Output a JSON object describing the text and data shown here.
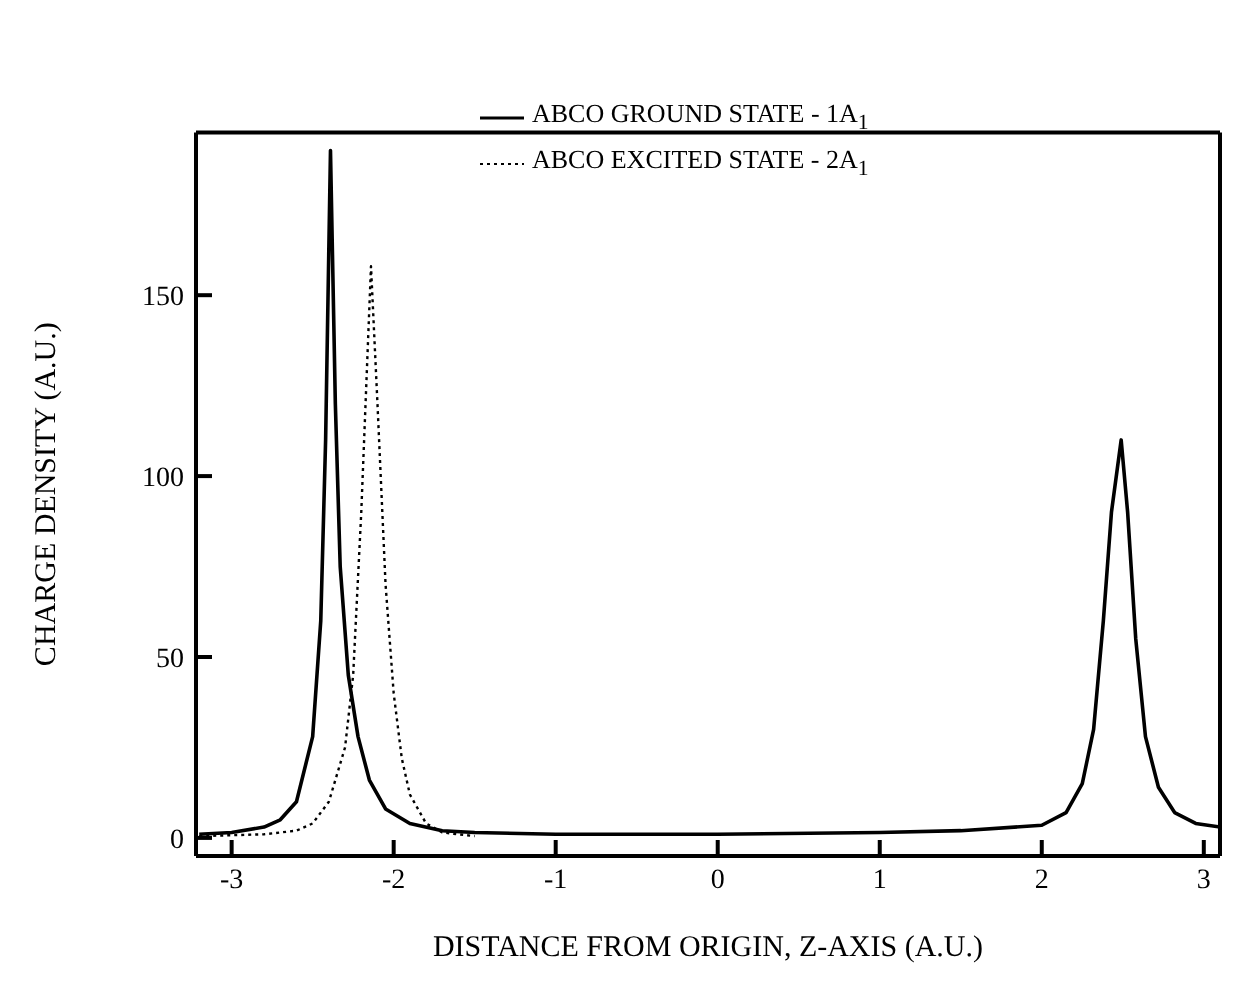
{
  "chart_data": {
    "type": "line",
    "xlabel": "DISTANCE FROM ORIGIN, Z-AXIS (A.U.)",
    "ylabel": "CHARGE DENSITY (A.U.)",
    "xlim": [
      -3.22,
      3.1
    ],
    "xticks": [
      -3,
      -2,
      -1,
      0,
      1,
      2,
      3
    ],
    "ylim": [
      -5,
      195
    ],
    "yticks": [
      0,
      50,
      100,
      150
    ],
    "grid": false,
    "legend": "top",
    "marker": "none",
    "series": [
      {
        "name": "ABCO GROUND STATE - 1A$_{1}$",
        "color": "#000000",
        "line_style": "solid",
        "x": [
          -3.2,
          -3.0,
          -2.8,
          -2.7,
          -2.6,
          -2.5,
          -2.45,
          -2.42,
          -2.39,
          -2.36,
          -2.33,
          -2.28,
          -2.22,
          -2.15,
          -2.05,
          -1.9,
          -1.7,
          -1.5,
          -1,
          0,
          1,
          1.5,
          2.0,
          2.15,
          2.25,
          2.32,
          2.38,
          2.43,
          2.49,
          2.53,
          2.58,
          2.64,
          2.72,
          2.82,
          2.95,
          3.1
        ],
        "values": [
          1,
          1.5,
          3,
          5,
          10,
          28,
          60,
          110,
          190,
          120,
          75,
          45,
          28,
          16,
          8,
          4,
          2,
          1.5,
          1,
          1,
          1.5,
          2,
          3.5,
          7,
          15,
          30,
          60,
          90,
          110,
          90,
          55,
          28,
          14,
          7,
          4,
          3
        ]
      },
      {
        "name": "ABCO EXCITED STATE - 2A$_{1}$",
        "color": "#000000",
        "line_style": "dotted",
        "x": [
          -3.2,
          -2.8,
          -2.6,
          -2.5,
          -2.4,
          -2.3,
          -2.25,
          -2.2,
          -2.14,
          -2.1,
          -2.05,
          -2.0,
          -1.95,
          -1.9,
          -1.8,
          -1.7,
          -1.5
        ],
        "values": [
          0.5,
          1,
          2,
          4,
          10,
          25,
          45,
          90,
          158,
          120,
          70,
          40,
          22,
          12,
          4,
          1.5,
          0.5
        ]
      }
    ]
  }
}
